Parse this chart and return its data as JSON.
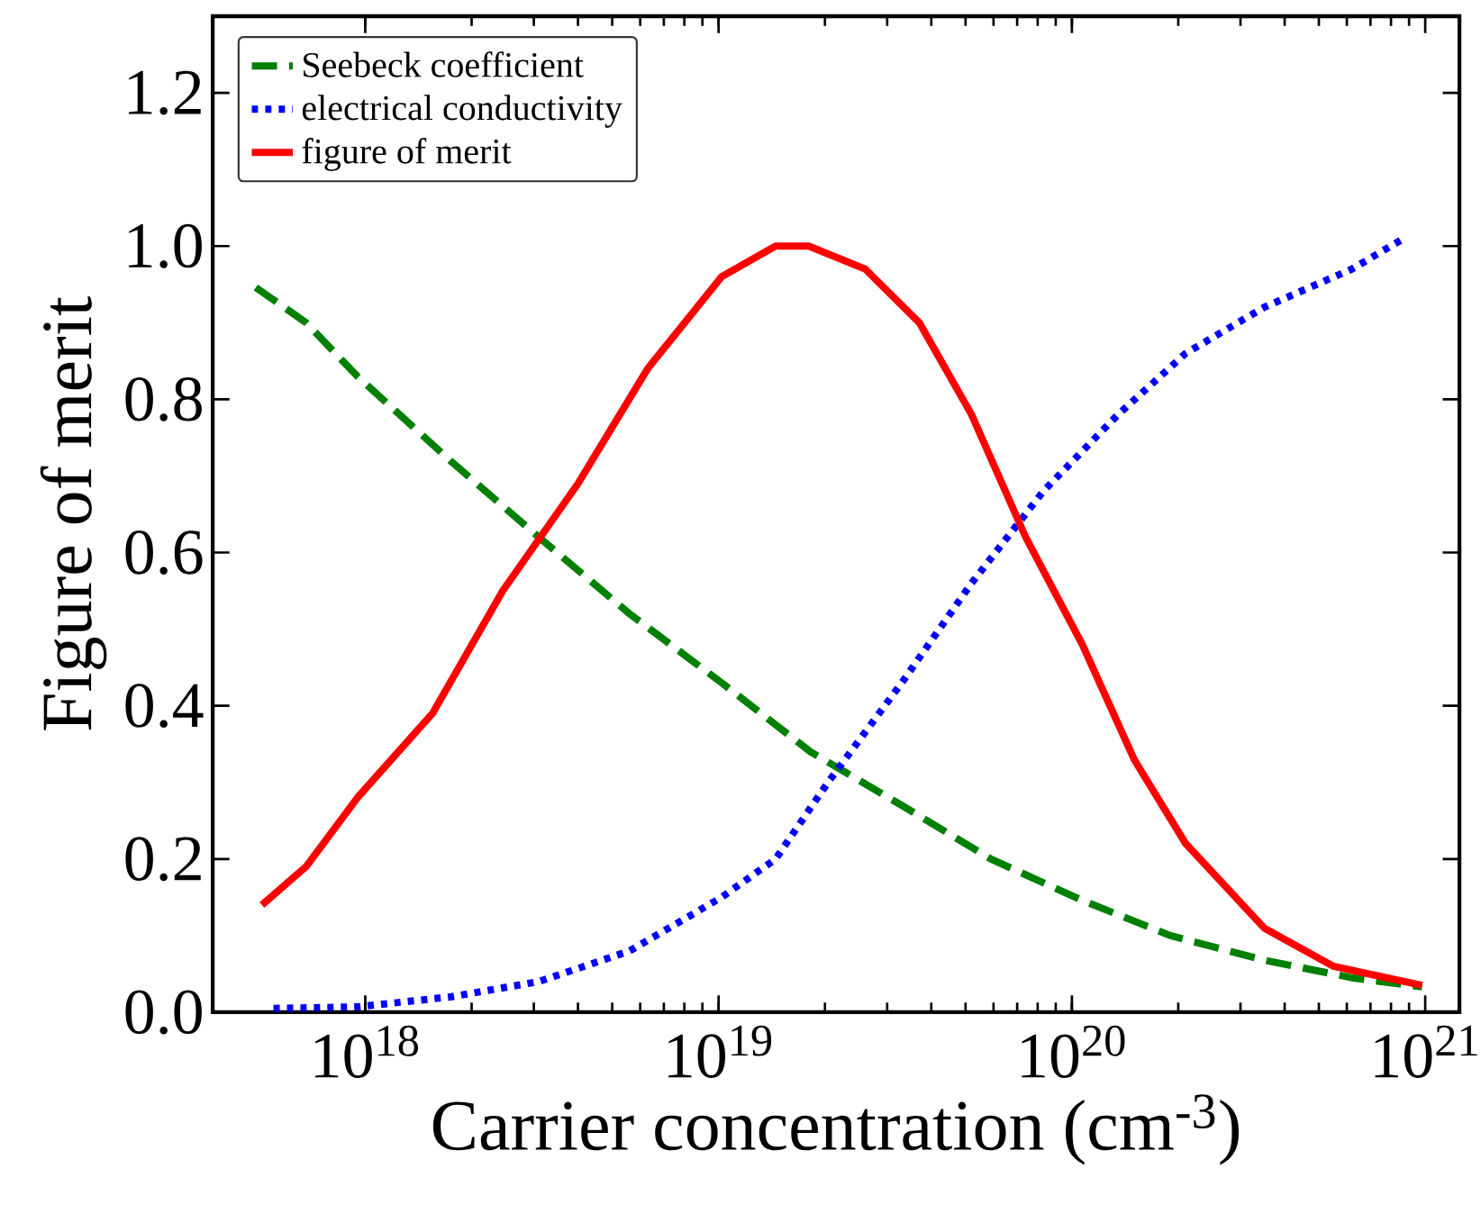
{
  "chart_data": {
    "type": "line",
    "xlabel": "Carrier concentration (cm$^{-3}$)",
    "ylabel": "Figure of merit",
    "log": "x",
    "xlim": [
      3.7e+17,
      1.25e+21
    ],
    "ylim": [
      0,
      1.3
    ],
    "xticks": [
      {
        "value": 1e+18,
        "label": "10$^{18}$"
      },
      {
        "value": 1e+19,
        "label": "10$^{19}$"
      },
      {
        "value": 1e+20,
        "label": "10$^{20}$"
      },
      {
        "value": 1e+21,
        "label": "10$^{21}$"
      }
    ],
    "yticks": [
      {
        "value": 0,
        "label": "0.0"
      },
      {
        "value": 0.2,
        "label": "0.2"
      },
      {
        "value": 0.4,
        "label": "0.4"
      },
      {
        "value": 0.6,
        "label": "0.6"
      },
      {
        "value": 0.8,
        "label": "0.8"
      },
      {
        "value": 1.0,
        "label": "1.0"
      },
      {
        "value": 1.2,
        "label": "1.2"
      }
    ],
    "legend": "top left",
    "grid": false,
    "series": [
      {
        "name": "Seebeck coefficient",
        "color": "#008000",
        "line_style": "dashed",
        "x": [
          4.9e+17,
          6.8e+17,
          9.5e+17,
          1.74e+18,
          3.1e+18,
          5.6e+18,
          1.02e+19,
          1.82e+19,
          3.3e+19,
          5.9e+19,
          1.07e+20,
          1.9e+20,
          3.5e+20,
          6.2e+20,
          9.8e+20
        ],
        "values": [
          0.946,
          0.9,
          0.83,
          0.72,
          0.62,
          0.52,
          0.43,
          0.34,
          0.27,
          0.2,
          0.146,
          0.1,
          0.068,
          0.045,
          0.033
        ]
      },
      {
        "name": "electrical conductivity",
        "color": "#0000ff",
        "line_style": "dotted",
        "x": [
          5.5e+17,
          9.5e+17,
          1.74e+18,
          3.1e+18,
          5.6e+18,
          1.02e+19,
          1.45e+19,
          2.04e+19,
          3.3e+19,
          5.2e+19,
          8.3e+19,
          1.35e+20,
          2.1e+20,
          3.5e+20,
          6.2e+20,
          8.7e+20
        ],
        "values": [
          0.005,
          0.007,
          0.02,
          0.04,
          0.08,
          0.15,
          0.2,
          0.3,
          0.43,
          0.56,
          0.68,
          0.78,
          0.86,
          0.92,
          0.97,
          1.01
        ]
      },
      {
        "name": "figure of merit",
        "color": "#ff0000",
        "line_style": "solid",
        "x": [
          5.1e+17,
          6.8e+17,
          9.5e+17,
          1.55e+18,
          2.45e+18,
          4e+18,
          6.3e+18,
          1.02e+19,
          1.45e+19,
          1.8e+19,
          2.6e+19,
          3.7e+19,
          5.2e+19,
          7.4e+19,
          1.07e+20,
          1.5e+20,
          2.1e+20,
          3.5e+20,
          5.5e+20,
          9.8e+20
        ],
        "values": [
          0.14,
          0.19,
          0.28,
          0.39,
          0.55,
          0.69,
          0.84,
          0.96,
          1.0,
          1.0,
          0.97,
          0.9,
          0.78,
          0.62,
          0.48,
          0.33,
          0.22,
          0.11,
          0.06,
          0.035
        ]
      }
    ]
  }
}
